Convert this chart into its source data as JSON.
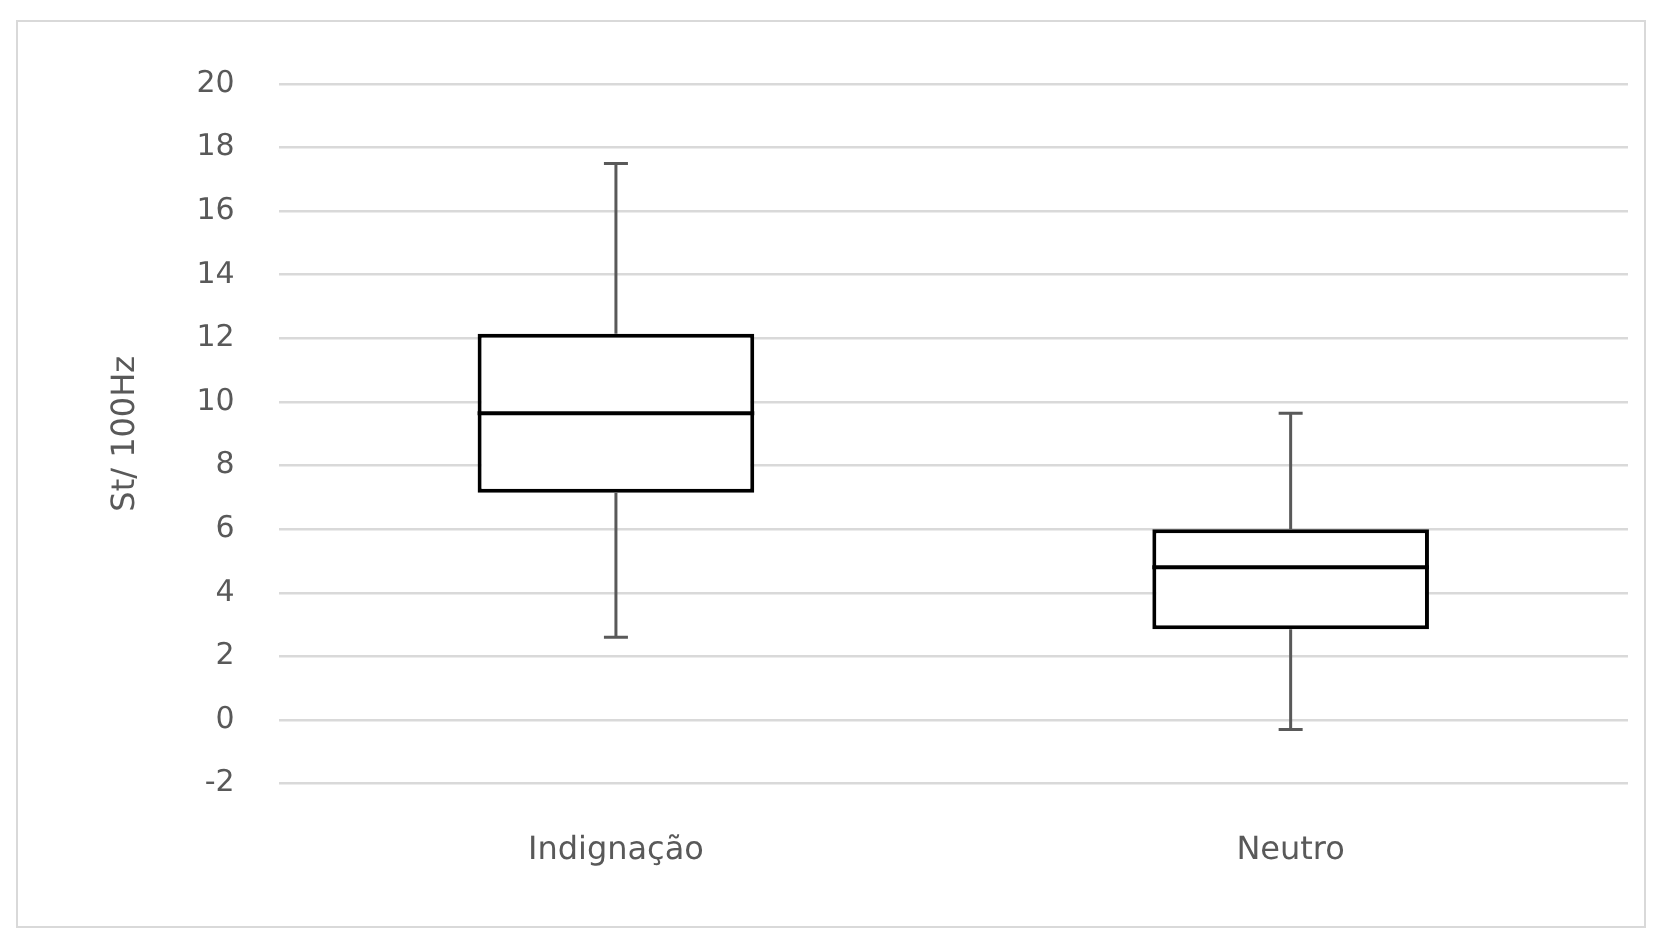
{
  "chart_data": {
    "type": "box",
    "ylabel": "St/ 100Hz",
    "categories": [
      "Indignação",
      "Neutro"
    ],
    "boxes": [
      {
        "low": 2.6,
        "q1": 7.15,
        "median": 9.65,
        "q3": 12.15,
        "high": 17.5
      },
      {
        "low": -0.3,
        "q1": 2.85,
        "median": 4.8,
        "q3": 6,
        "high": 9.65
      }
    ],
    "ylim": [
      -2,
      20
    ],
    "yticks": [
      -2,
      0,
      2,
      4,
      6,
      8,
      10,
      12,
      14,
      16,
      18,
      20
    ],
    "grid": "y"
  }
}
